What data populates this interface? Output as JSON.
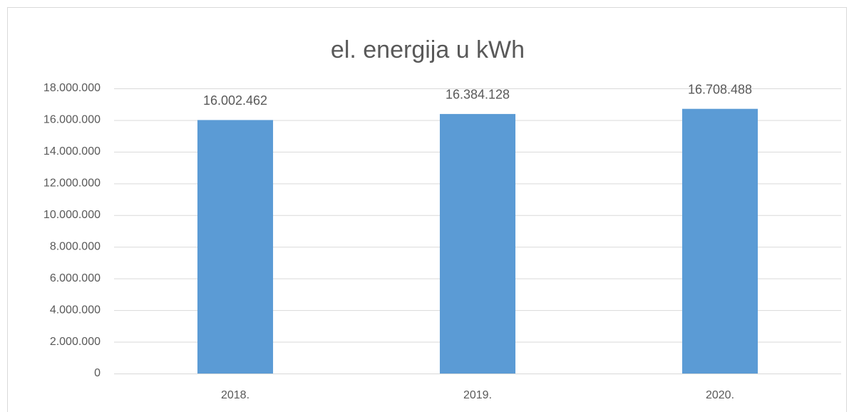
{
  "chart_data": {
    "type": "bar",
    "title": "el. energija u kWh",
    "categories": [
      "2018.",
      "2019.",
      "2020."
    ],
    "values": [
      16002462,
      16384128,
      16708488
    ],
    "value_labels": [
      "16.002.462",
      "16.384.128",
      "16.708.488"
    ],
    "color": "#5b9bd5",
    "ylim": [
      0,
      18000000
    ],
    "yticks": [
      0,
      {
        "value": 2000000,
        "label": "2.000.000"
      },
      {
        "value": 4000000,
        "label": "4.000.000"
      },
      {
        "value": 6000000,
        "label": "6.000.000"
      },
      {
        "value": 8000000,
        "label": "8.000.000"
      },
      {
        "value": 10000000,
        "label": "10.000.000"
      },
      {
        "value": 12000000,
        "label": "12.000.000"
      },
      {
        "value": 14000000,
        "label": "14.000.000"
      },
      {
        "value": 16000000,
        "label": "16.000.000"
      },
      {
        "value": 18000000,
        "label": "18.000.000"
      }
    ],
    "grid": true
  }
}
